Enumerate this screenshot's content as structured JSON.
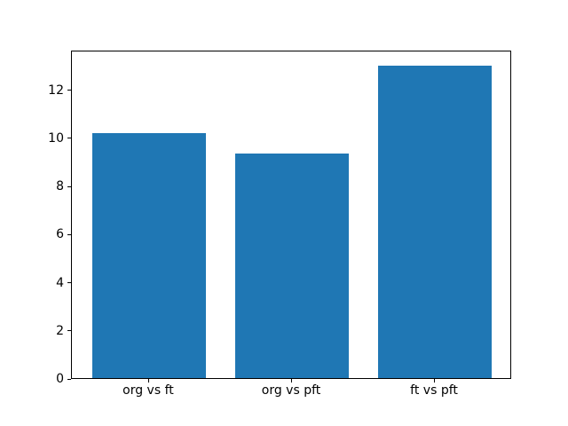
{
  "chart_data": {
    "type": "bar",
    "title": "",
    "xlabel": "",
    "ylabel": "",
    "categories": [
      "org vs ft",
      "org vs pft",
      "ft vs pft"
    ],
    "values": [
      10.2,
      9.35,
      13.0
    ],
    "yticks": [
      0,
      2,
      4,
      6,
      8,
      10,
      12
    ],
    "ylim": [
      0,
      13.65
    ],
    "bar_width_fraction": 0.8,
    "x_margin": 0.54,
    "bar_color": "#1f77b4",
    "spine_color": "#000000",
    "background_color": "#ffffff",
    "grid": "off",
    "legend": "none"
  }
}
